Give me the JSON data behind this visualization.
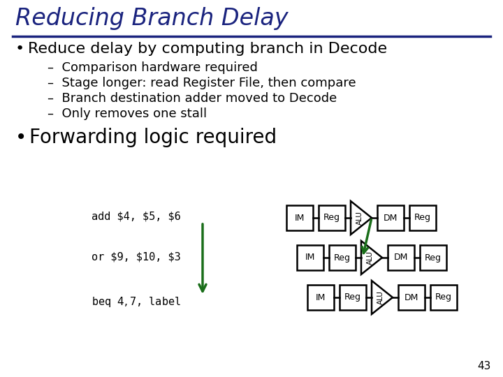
{
  "title": "Reducing Branch Delay",
  "title_color": "#1a237e",
  "bg_color": "#ffffff",
  "bullet1": "Reduce delay by computing branch in Decode",
  "sub_bullets": [
    "Comparison hardware required",
    "Stage longer: read Register File, then compare",
    "Branch destination adder moved to Decode",
    "Only removes one stall"
  ],
  "bullet2": "Forwarding logic required",
  "instructions": [
    "add $4, $5, $6",
    "or $9, $10, $3",
    "beq $4, $7, label"
  ],
  "page_number": "43",
  "arrow_color": "#1a6e1a",
  "diagram_color": "#000000",
  "title_fontsize": 24,
  "bullet1_fontsize": 16,
  "sub_fontsize": 13,
  "bullet2_fontsize": 20
}
